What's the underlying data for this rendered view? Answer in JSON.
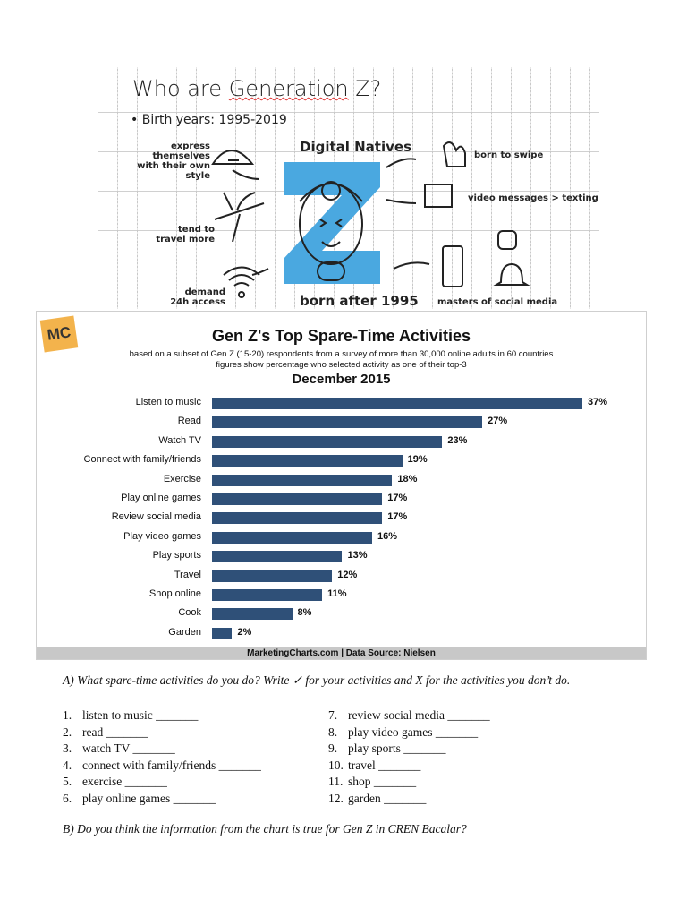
{
  "infographic": {
    "title_prefix": "Who are ",
    "title_underlined": "Generation",
    "title_suffix": " Z?",
    "bullet": "• Birth years: 1995-2019",
    "center_top": "Digital Natives",
    "center_bottom": "born after 1995",
    "labels": {
      "style_1": "express themselves",
      "style_2": "with their own style",
      "travel_1": "tend to",
      "travel_2": "travel more",
      "access_1": "demand",
      "access_2": "24h access",
      "swipe": "born to swipe",
      "video": "video messages > texting",
      "social": "masters of social media"
    },
    "accent": "#4aa8e0"
  },
  "chart": {
    "logo": "MC",
    "footer": "MarketingCharts.com | Data Source: Nielsen"
  },
  "chart_data": {
    "type": "bar",
    "orientation": "horizontal",
    "title": "Gen Z's Top Spare-Time Activities",
    "subtitle_1": "based on a subset of Gen Z (15-20) respondents from a survey of more than 30,000 online adults in 60 countries",
    "subtitle_2": "figures show percentage who selected activity as one of their top-3",
    "date": "December 2015",
    "categories": [
      "Listen to music",
      "Read",
      "Watch TV",
      "Connect with family/friends",
      "Exercise",
      "Play online games",
      "Review social media",
      "Play video games",
      "Play sports",
      "Travel",
      "Shop online",
      "Cook",
      "Garden"
    ],
    "values": [
      37,
      27,
      23,
      19,
      18,
      17,
      17,
      16,
      13,
      12,
      11,
      8,
      2
    ],
    "labels": [
      "37%",
      "27%",
      "23%",
      "19%",
      "18%",
      "17%",
      "17%",
      "16%",
      "13%",
      "12%",
      "11%",
      "8%",
      "2%"
    ],
    "unit": "%",
    "bar_color": "#2f5078",
    "grid": false
  },
  "questions": {
    "a": "A)  What spare-time activities do you do? Write  ✓ for your activities and X for the activities you don’t do.",
    "left": [
      {
        "n": "1.",
        "t": "listen to music _______"
      },
      {
        "n": "2.",
        "t": "read _______"
      },
      {
        "n": "3.",
        "t": "watch TV _______"
      },
      {
        "n": "4.",
        "t": "connect with family/friends _______"
      },
      {
        "n": "5.",
        "t": "exercise _______"
      },
      {
        "n": "6.",
        "t": "play online games _______"
      }
    ],
    "right": [
      {
        "n": "7.",
        "t": "review social media _______"
      },
      {
        "n": "8.",
        "t": "play video games _______"
      },
      {
        "n": "9.",
        "t": "play sports _______"
      },
      {
        "n": "10.",
        "t": "travel _______"
      },
      {
        "n": "11.",
        "t": "shop _______"
      },
      {
        "n": "12.",
        "t": "garden _______"
      }
    ],
    "b": "B)  Do you think the information from the chart is true for Gen Z in CREN Bacalar?"
  }
}
